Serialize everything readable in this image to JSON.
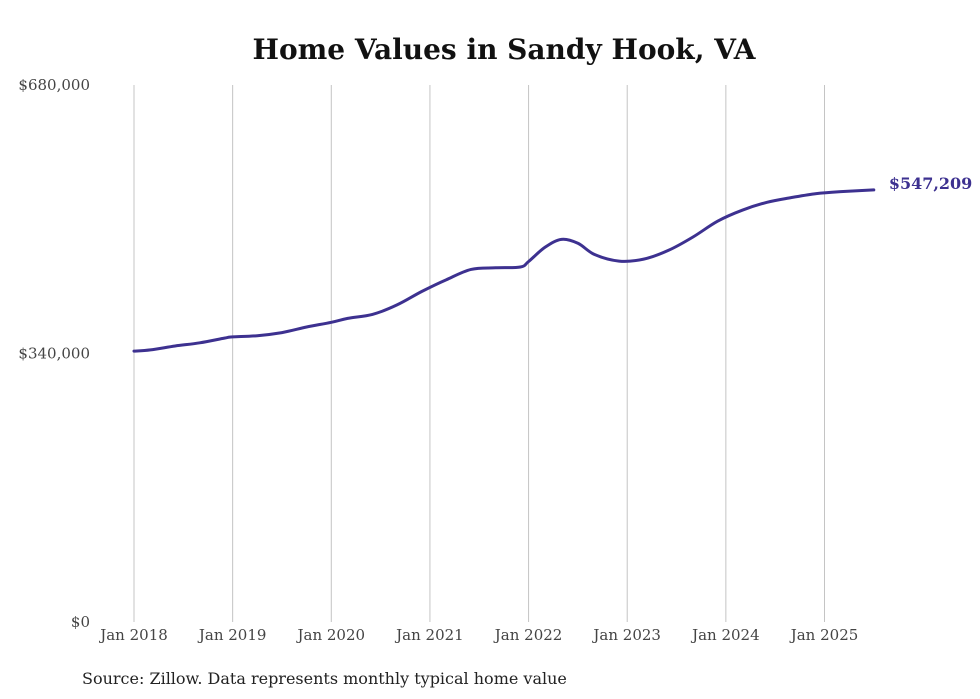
{
  "chart_data": {
    "type": "line",
    "title": "Home Values in Sandy Hook, VA",
    "source": "Source: Zillow. Data represents monthly typical home value",
    "y_ticks": [
      {
        "value": 0,
        "label": "$0"
      },
      {
        "value": 340000,
        "label": "$340,000"
      },
      {
        "value": 680000,
        "label": "$680,000"
      }
    ],
    "x_ticks": [
      "Jan 2018",
      "Jan 2019",
      "Jan 2020",
      "Jan 2021",
      "Jan 2022",
      "Jan 2023",
      "Jan 2024",
      "Jan 2025"
    ],
    "ylim": [
      0,
      680000
    ],
    "xlim": [
      "2018-01",
      "2025-07"
    ],
    "grid": "vertical",
    "line_color": "#3d3190",
    "end_label": "$547,209",
    "series": [
      {
        "points": [
          [
            "2018-01",
            343000
          ],
          [
            "2018-03",
            344500
          ],
          [
            "2018-06",
            349500
          ],
          [
            "2018-09",
            353500
          ],
          [
            "2018-12",
            359500
          ],
          [
            "2019-01",
            361000
          ],
          [
            "2019-04",
            362500
          ],
          [
            "2019-07",
            366500
          ],
          [
            "2019-10",
            373500
          ],
          [
            "2020-01",
            379500
          ],
          [
            "2020-03",
            384500
          ],
          [
            "2020-06",
            389500
          ],
          [
            "2020-09",
            401500
          ],
          [
            "2020-12",
            418500
          ],
          [
            "2021-03",
            433500
          ],
          [
            "2021-06",
            446500
          ],
          [
            "2021-09",
            448500
          ],
          [
            "2021-12",
            449500
          ],
          [
            "2022-01",
            456500
          ],
          [
            "2022-03",
            474500
          ],
          [
            "2022-05",
            484500
          ],
          [
            "2022-07",
            479500
          ],
          [
            "2022-09",
            465500
          ],
          [
            "2022-12",
            457000
          ],
          [
            "2023-03",
            459500
          ],
          [
            "2023-06",
            470500
          ],
          [
            "2023-09",
            487500
          ],
          [
            "2023-12",
            507500
          ],
          [
            "2024-03",
            521500
          ],
          [
            "2024-06",
            531500
          ],
          [
            "2024-09",
            537500
          ],
          [
            "2024-12",
            542500
          ],
          [
            "2025-03",
            545000
          ],
          [
            "2025-07",
            547209
          ]
        ]
      }
    ]
  }
}
